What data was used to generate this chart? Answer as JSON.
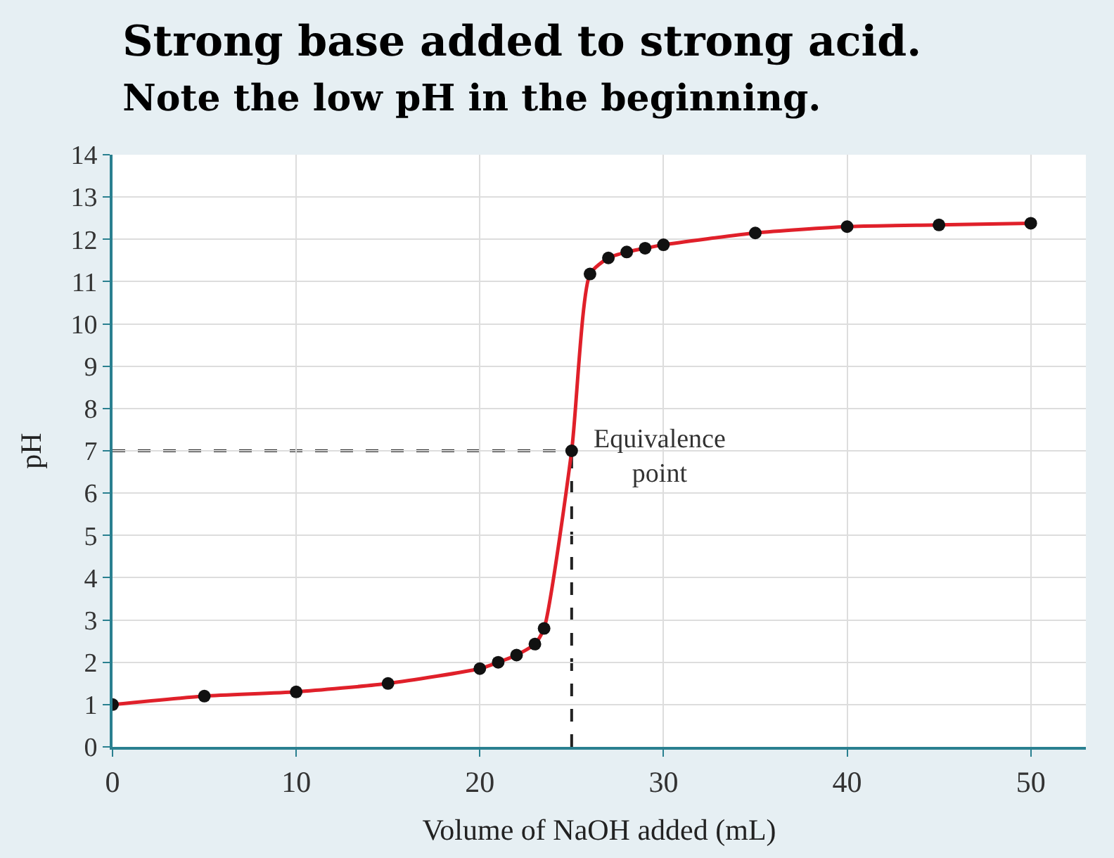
{
  "chart_data": {
    "type": "line",
    "title": "Strong base added to strong acid.",
    "subtitle": "Note the low pH in the beginning.",
    "xlabel": "Volume of NaOH added (mL)",
    "ylabel": "pH",
    "x": [
      0,
      5,
      10,
      15,
      20,
      21,
      22,
      23,
      23.5,
      25,
      26,
      27,
      28,
      29,
      30,
      35,
      40,
      45,
      50
    ],
    "series": [
      {
        "color": "#e0202a",
        "marker": "none",
        "values": [
          1.0,
          1.2,
          1.3,
          1.5,
          1.85,
          2.0,
          2.17,
          2.43,
          2.8,
          7.0,
          11.18,
          11.56,
          11.7,
          11.79,
          11.87,
          12.15,
          12.3,
          12.34,
          12.38
        ]
      },
      {
        "type": "scatter",
        "color": "#111111",
        "marker": "circle",
        "values": [
          1.0,
          1.2,
          1.3,
          1.5,
          1.85,
          2.0,
          2.17,
          2.43,
          2.8,
          7.0,
          11.18,
          11.56,
          11.7,
          11.79,
          11.87,
          12.15,
          12.3,
          12.34,
          12.38
        ]
      }
    ],
    "xlim": [
      0,
      53
    ],
    "ylim": [
      0,
      14
    ],
    "xticks": [
      0,
      10,
      20,
      30,
      40,
      50
    ],
    "yticks": [
      0,
      1,
      2,
      3,
      4,
      5,
      6,
      7,
      8,
      9,
      10,
      11,
      12,
      13,
      14
    ],
    "ref_lines": [
      {
        "axis": "x",
        "value": 25,
        "color": "#222222",
        "line_style": "dashed"
      },
      {
        "axis": "y",
        "value": 7,
        "color": "#222222",
        "line_style": "dashed"
      }
    ],
    "annotations": [
      {
        "text": "Equivalence point",
        "x": 25,
        "y": 7
      }
    ],
    "grid": true
  }
}
